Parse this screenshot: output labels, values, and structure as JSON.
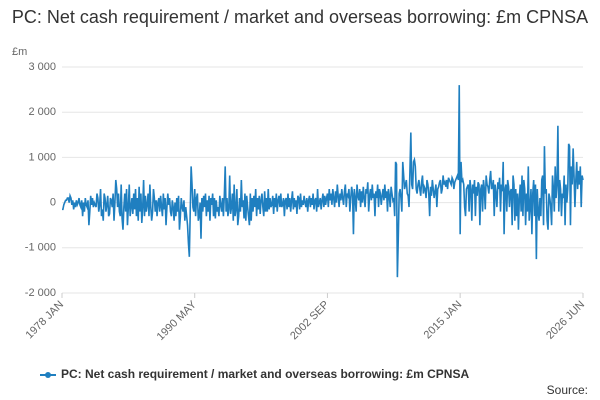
{
  "chart_data": {
    "type": "line",
    "title": "PC: Net cash requirement / market and overseas borrowing: £m CPNSA",
    "y_label": "£m",
    "source": "Source:",
    "ylim": [
      -2000,
      3000
    ],
    "yticks": [
      {
        "value": -2000,
        "label": "-2 000"
      },
      {
        "value": -1000,
        "label": "-1 000"
      },
      0,
      {
        "value": 1000,
        "label": "1 000"
      },
      {
        "value": 2000,
        "label": "2 000"
      },
      {
        "value": 3000,
        "label": "3 000"
      }
    ],
    "grid": true,
    "categories": [
      "1978 JAN",
      null,
      null,
      null,
      null,
      null,
      null,
      null,
      null,
      null,
      null,
      null,
      null,
      null,
      null,
      null,
      null,
      null,
      null,
      null,
      null,
      null,
      null,
      null,
      null,
      null,
      null,
      null,
      null,
      null,
      null,
      null,
      null,
      null,
      null,
      null,
      null,
      null,
      null,
      null,
      null,
      null,
      null,
      null,
      null,
      null,
      null,
      null,
      null,
      null,
      null,
      null,
      null,
      null,
      null,
      null,
      null,
      null,
      null,
      null,
      null,
      null,
      null,
      null,
      null,
      null,
      null,
      null,
      null,
      null,
      null,
      null,
      null,
      null,
      null,
      null,
      null,
      null,
      null,
      null,
      null,
      null,
      null,
      null,
      null,
      null,
      null,
      null,
      null,
      null,
      null,
      null,
      null,
      null,
      null,
      null,
      null,
      null,
      null,
      null,
      null,
      null,
      null,
      null,
      null,
      null,
      null,
      null,
      null,
      null,
      null,
      null,
      null,
      null,
      null,
      null,
      null,
      null,
      null,
      null,
      null,
      null,
      null,
      null,
      null,
      null,
      null,
      null,
      null,
      null,
      null,
      null,
      null,
      null,
      null,
      null,
      null,
      null,
      null,
      null,
      null,
      null,
      null,
      null,
      null,
      null,
      null,
      null,
      "1990 MAY",
      null,
      null,
      null,
      null,
      null,
      null,
      null,
      null,
      null,
      null,
      null,
      null,
      null,
      null,
      null,
      null,
      null,
      null,
      null,
      null,
      null,
      null,
      null,
      null,
      null,
      null,
      null,
      null,
      null,
      null,
      null,
      null,
      null,
      null,
      null,
      null,
      null,
      null,
      null,
      null,
      null,
      null,
      null,
      null,
      null,
      null,
      null,
      null,
      null,
      null,
      null,
      null,
      null,
      null,
      null,
      null,
      null,
      null,
      null,
      null,
      null,
      null,
      null,
      null,
      null,
      null,
      null,
      null,
      null,
      null,
      null,
      null,
      null,
      null,
      null,
      null,
      null,
      null,
      null,
      null,
      null,
      null,
      null,
      null,
      null,
      null,
      null,
      null,
      null,
      null,
      null,
      null,
      null,
      null,
      null,
      null,
      null,
      null,
      null,
      null,
      null,
      null,
      null,
      null,
      null,
      null,
      null,
      null,
      null,
      null,
      null,
      null,
      null,
      null,
      null,
      null,
      null,
      null,
      null,
      null,
      null,
      null,
      null,
      null,
      null,
      null,
      null,
      null,
      null,
      null,
      null,
      null,
      null,
      null,
      null,
      null,
      null,
      null,
      null,
      null,
      null,
      null,
      null,
      null,
      null,
      null,
      null,
      "2002 SEP",
      null,
      null,
      null,
      null,
      null,
      null,
      null,
      null,
      null,
      null,
      null,
      null,
      null,
      null,
      null,
      null,
      null,
      null,
      null,
      null,
      null,
      null,
      null,
      null,
      null,
      null,
      null,
      null,
      null,
      null,
      null,
      null,
      null,
      null,
      null,
      null,
      null,
      null,
      null,
      null,
      null,
      null,
      null,
      null,
      null,
      null,
      null,
      null,
      null,
      null,
      null,
      null,
      null,
      null,
      null,
      null,
      null,
      null,
      null,
      null,
      null,
      null,
      null,
      null,
      null,
      null,
      null,
      null,
      null,
      null,
      null,
      null,
      null,
      null,
      null,
      null,
      null,
      null,
      null,
      null,
      null,
      null,
      null,
      null,
      null,
      null,
      null,
      null,
      null,
      null,
      null,
      null,
      null,
      null,
      null,
      null,
      null,
      null,
      null,
      null,
      null,
      null,
      null,
      null,
      null,
      null,
      null,
      null,
      null,
      null,
      null,
      null,
      null,
      null,
      null,
      null,
      null,
      null,
      null,
      null,
      null,
      null,
      null,
      null,
      null,
      null,
      null,
      null,
      null,
      null,
      null,
      null,
      null,
      null,
      null,
      null,
      null,
      null,
      null,
      null,
      null,
      null,
      null,
      null,
      null,
      null,
      null,
      "2015 JAN",
      null,
      null,
      null,
      null,
      null,
      null,
      null,
      null,
      null,
      null,
      null,
      null,
      null,
      null,
      null,
      null,
      null,
      null,
      null,
      null,
      null,
      null,
      null,
      null,
      null,
      null,
      null,
      null,
      null,
      null,
      null,
      null,
      null,
      null,
      null,
      null,
      null,
      null,
      null,
      null,
      null,
      null,
      null,
      null,
      null,
      null,
      null,
      null,
      null,
      null,
      null,
      null,
      null,
      null,
      null,
      null,
      null,
      null,
      null,
      null,
      null,
      null,
      null,
      null,
      null,
      null,
      null,
      null,
      null,
      null,
      null,
      null,
      null,
      null,
      null,
      null,
      null,
      null,
      null,
      null,
      null,
      null,
      null,
      null,
      null,
      null,
      null,
      null,
      null,
      null,
      null,
      null,
      null,
      null,
      null,
      null,
      null,
      null,
      null,
      null,
      null,
      null,
      null,
      null,
      null,
      null,
      null,
      null,
      null,
      null,
      null,
      null,
      null,
      null,
      null,
      null,
      null,
      null,
      null,
      null,
      null,
      null,
      null,
      null,
      null,
      null,
      null,
      null,
      null,
      null,
      null,
      null,
      null,
      null,
      null,
      null,
      "2026 JUN"
    ],
    "series": [
      {
        "name": "PC: Net cash requirement / market and overseas borrowing: £m CPNSA",
        "color": "#1f7fc0",
        "values": [
          -150,
          -150,
          -50,
          0,
          50,
          50,
          100,
          100,
          0,
          150,
          100,
          -50,
          50,
          -150,
          0,
          -100,
          50,
          -50,
          0,
          100,
          -50,
          -100,
          50,
          -300,
          0,
          -200,
          100,
          -50,
          -100,
          50,
          -500,
          -200,
          150,
          -50,
          100,
          -100,
          0,
          -50,
          -100,
          200,
          100,
          -200,
          -50,
          300,
          -300,
          -150,
          -400,
          200,
          100,
          -200,
          -50,
          150,
          -300,
          -250,
          100,
          50,
          -100,
          200,
          -400,
          0,
          500,
          300,
          -100,
          200,
          -200,
          -300,
          400,
          -350,
          -600,
          -100,
          200,
          -200,
          300,
          -500,
          -100,
          400,
          -300,
          -100,
          100,
          -250,
          200,
          -150,
          300,
          -300,
          100,
          -400,
          350,
          -200,
          200,
          -450,
          -100,
          500,
          -300,
          150,
          -200,
          -50,
          200,
          -300,
          400,
          -100,
          -400,
          -200,
          300,
          100,
          -200,
          50,
          -300,
          0,
          100,
          -200,
          150,
          -100,
          -300,
          200,
          -150,
          100,
          -500,
          -100,
          200,
          -50,
          100,
          -200,
          -300,
          50,
          -100,
          -400,
          0,
          -300,
          100,
          -200,
          150,
          -600,
          -300,
          100,
          -100,
          -200,
          50,
          -400,
          -100,
          -300,
          -500,
          -900,
          -1200,
          -200,
          800,
          400,
          -100,
          -200,
          300,
          -300,
          100,
          200,
          -400,
          -300,
          0,
          -800,
          100,
          -200,
          150,
          -100,
          200,
          -300,
          50,
          -200,
          150,
          -400,
          100,
          -50,
          200,
          -300,
          100,
          -350,
          50,
          -200,
          -100,
          -300,
          150,
          -50,
          -200,
          100,
          -300,
          150,
          800,
          -200,
          100,
          -300,
          -150,
          600,
          -250,
          -100,
          200,
          -400,
          400,
          -300,
          -150,
          300,
          -500,
          -300,
          100,
          -200,
          500,
          -100,
          50,
          -350,
          200,
          -400,
          150,
          -100,
          -300,
          -500,
          200,
          -400,
          100,
          -200,
          150,
          -100,
          300,
          -300,
          100,
          -150,
          150,
          -250,
          50,
          200,
          -100,
          -300,
          250,
          -200,
          100,
          -200,
          300,
          -150,
          100,
          -100,
          -50,
          150,
          -250,
          100,
          -100,
          200,
          -200,
          50,
          150,
          -100,
          200,
          -100,
          -50,
          100,
          -300,
          50,
          100,
          -150,
          200,
          -100,
          100,
          -200,
          50,
          250,
          -150,
          100,
          -100,
          50,
          -250,
          150,
          100,
          -150,
          200,
          -100,
          50,
          -50,
          150,
          0,
          -100,
          100,
          -200,
          50,
          150,
          -100,
          100,
          -50,
          200,
          -150,
          50,
          100,
          -200,
          300,
          -100,
          0,
          100,
          -150,
          50,
          200,
          -100,
          150,
          -50,
          100,
          200,
          -100,
          300,
          50,
          200,
          -50,
          300,
          100,
          -100,
          250,
          0,
          400,
          150,
          -100,
          200,
          50,
          300,
          100,
          -50,
          250,
          400,
          -100,
          200,
          150,
          300,
          -200,
          100,
          350,
          200,
          -700,
          300,
          100,
          -200,
          400,
          150,
          50,
          300,
          -100,
          250,
          0,
          350,
          100,
          -100,
          300,
          200,
          450,
          -200,
          150,
          300,
          50,
          400,
          100,
          200,
          -300,
          250,
          100,
          400,
          -100,
          300,
          200,
          -50,
          150,
          300,
          50,
          400,
          100,
          250,
          -200,
          300,
          150,
          -100,
          350,
          200,
          50,
          100,
          -300,
          900,
          850,
          -1650,
          -800,
          200,
          300,
          100,
          -200,
          900,
          600,
          300,
          400,
          500,
          200,
          150,
          -100,
          700,
          1550,
          400,
          300,
          900,
          950,
          800,
          300,
          200,
          400,
          500,
          300,
          150,
          450,
          600,
          200,
          350,
          300,
          100,
          500,
          400,
          200,
          -300,
          350,
          150,
          500,
          300,
          100,
          250,
          400,
          -100,
          300,
          350,
          450,
          500,
          200,
          300,
          600,
          400,
          450,
          350,
          500,
          300,
          550,
          500,
          450,
          400,
          550,
          500,
          300,
          450,
          500,
          550,
          600,
          500,
          2600,
          -700,
          900,
          450,
          500,
          400,
          -100,
          -300,
          300,
          350,
          400,
          -200,
          500,
          300,
          -400,
          400,
          200,
          500,
          -300,
          350,
          150,
          450,
          400,
          -500,
          300,
          400,
          -200,
          500,
          300,
          -150,
          600,
          400,
          350,
          200,
          500,
          700,
          300,
          350,
          500,
          -300,
          400,
          200,
          -100,
          450,
          300,
          550,
          -200,
          400,
          250,
          900,
          -700,
          300,
          400,
          -200,
          500,
          350,
          -100,
          250,
          300,
          -500,
          600,
          400,
          -400,
          300,
          -300,
          200,
          -600,
          100,
          400,
          -200,
          600,
          -300,
          500,
          300,
          -500,
          200,
          -200,
          800,
          -400,
          -100,
          300,
          -700,
          200,
          500,
          -300,
          400,
          -1250,
          300,
          -200,
          -400,
          100,
          -300,
          500,
          600,
          -500,
          1250,
          200,
          300,
          -400,
          -600,
          200,
          100,
          -100,
          -500,
          600,
          300,
          -200,
          800,
          100,
          400,
          1700,
          -200,
          500,
          300,
          -300,
          200,
          100,
          600,
          -500,
          400,
          0,
          300,
          1300,
          1250,
          -500,
          800,
          400,
          1200,
          600,
          -100,
          500,
          900,
          300,
          700,
          400,
          800,
          -100,
          600,
          500
        ]
      }
    ]
  }
}
